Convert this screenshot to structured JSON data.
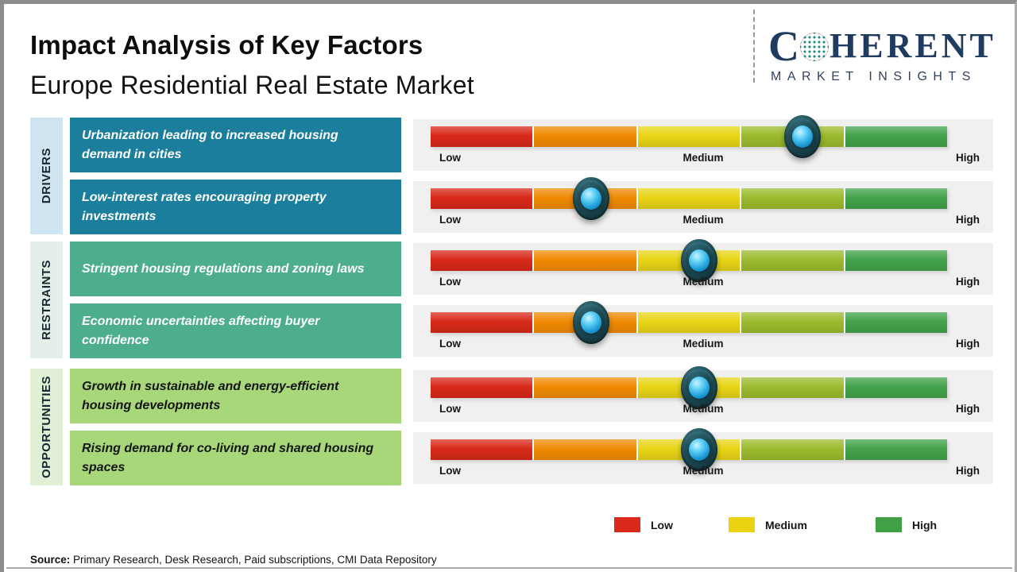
{
  "header": {
    "title": "Impact Analysis of Key Factors",
    "subtitle": "Europe Residential Real Estate Market",
    "logo": {
      "part1": "C",
      "part2": "HERENT",
      "tagline": "MARKET INSIGHTS"
    }
  },
  "scale_labels": {
    "low": "Low",
    "medium": "Medium",
    "high": "High"
  },
  "sections": [
    {
      "label": "DRIVERS",
      "rows": [
        {
          "text": "Urbanization leading to increased housing demand in cities",
          "impact_pct": 72,
          "impact_level": "Medium-High"
        },
        {
          "text": "Low-interest rates encouraging property investments",
          "impact_pct": 31,
          "impact_level": "Low-Medium"
        }
      ]
    },
    {
      "label": "RESTRAINTS",
      "rows": [
        {
          "text": "Stringent housing regulations and zoning laws",
          "impact_pct": 52,
          "impact_level": "Medium"
        },
        {
          "text": "Economic uncertainties affecting buyer confidence",
          "impact_pct": 31,
          "impact_level": "Low-Medium"
        }
      ]
    },
    {
      "label": "OPPORTUNITIES",
      "rows": [
        {
          "text": "Growth in sustainable and energy-efficient housing developments",
          "impact_pct": 52,
          "impact_level": "Medium"
        },
        {
          "text": "Rising demand for co-living and shared housing spaces",
          "impact_pct": 52,
          "impact_level": "Medium"
        }
      ]
    }
  ],
  "legend": [
    {
      "label": "Low",
      "color": "#d8291a"
    },
    {
      "label": "Medium",
      "color": "#e9d20f"
    },
    {
      "label": "High",
      "color": "#3fa044"
    }
  ],
  "source": {
    "label": "Source:",
    "text": " Primary Research, Desk Research, Paid subscriptions, CMI Data Repository"
  },
  "colors": {
    "drivers_box": "#1b7e9d",
    "drivers_strip": "#cfe6f2",
    "restraints_box": "#4dae8d",
    "restraints_strip": "#e5efe9",
    "opportunities_box": "#a7d779",
    "opportunities_strip": "#e0efd5",
    "seg_red": "#d8291a",
    "seg_orange": "#f08a04",
    "seg_yellow": "#e8d517",
    "seg_yellowgreen": "#9cbb2d",
    "seg_green": "#42a24a",
    "logo_navy": "#203b60"
  },
  "chart_data": {
    "type": "bar",
    "title": "Impact Analysis of Key Factors",
    "subtitle": "Europe Residential Real Estate Market",
    "scale": [
      "Low",
      "Medium",
      "High"
    ],
    "scale_range_pct": [
      0,
      100
    ],
    "groups": [
      "Drivers",
      "Drivers",
      "Restraints",
      "Restraints",
      "Opportunities",
      "Opportunities"
    ],
    "categories": [
      "Urbanization leading to increased housing demand in cities",
      "Low-interest rates encouraging property investments",
      "Stringent housing regulations and zoning laws",
      "Economic uncertainties affecting buyer confidence",
      "Growth in sustainable and energy-efficient housing developments",
      "Rising demand for co-living and shared housing spaces"
    ],
    "values": [
      72,
      31,
      52,
      31,
      52,
      52
    ],
    "value_labels": [
      "Medium-High",
      "Low-Medium",
      "Medium",
      "Low-Medium",
      "Medium",
      "Medium"
    ],
    "legend_entries": [
      "Low",
      "Medium",
      "High"
    ],
    "legend_position": "bottom-right",
    "segment_colors": [
      "#d8291a",
      "#f08a04",
      "#e8d517",
      "#9cbb2d",
      "#42a24a"
    ]
  }
}
